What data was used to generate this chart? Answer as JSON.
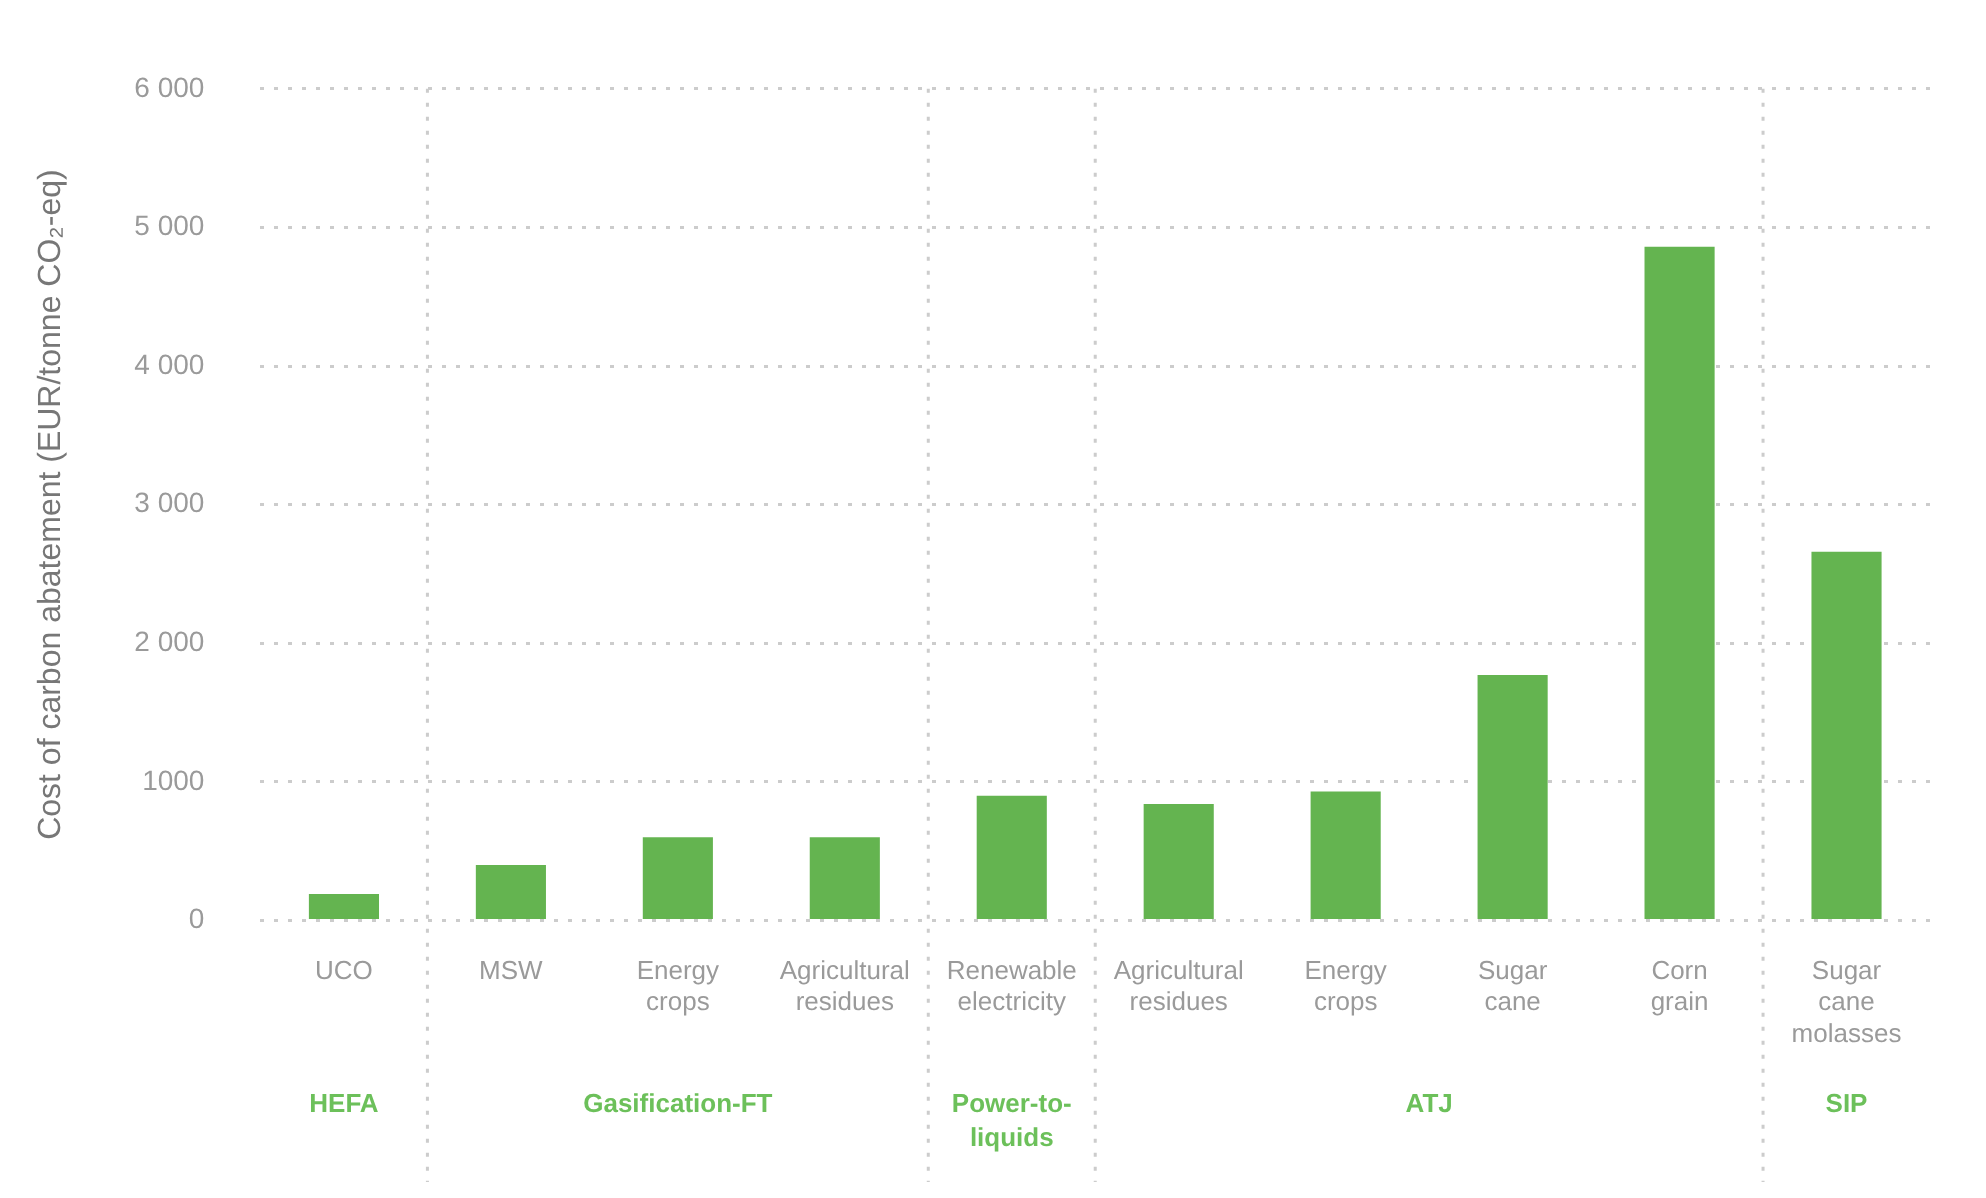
{
  "chart_data": {
    "type": "bar",
    "ylabel": "Cost of carbon abatement (EUR/tonne CO₂-eq)",
    "categories": [
      "UCO",
      "MSW",
      "Energy crops",
      "Agricultural residues",
      "Renewable electricity",
      "Agricultural residues",
      "Energy crops",
      "Sugar cane",
      "Corn grain",
      "Sugar cane molasses"
    ],
    "values": [
      190,
      400,
      600,
      600,
      900,
      840,
      930,
      1770,
      4860,
      2660
    ],
    "color": "#64b450",
    "ylim": [
      0,
      6000
    ],
    "yticks": [
      0,
      {
        "value": 1000,
        "label": "1000"
      },
      {
        "value": 2000,
        "label": "2 000"
      },
      {
        "value": 3000,
        "label": "3 000"
      },
      {
        "value": 4000,
        "label": "4 000"
      },
      {
        "value": 5000,
        "label": "5 000"
      },
      {
        "value": 6000,
        "label": "6 000"
      }
    ],
    "grid": "y",
    "annotations": [
      "HEFA",
      "Gasification-FT",
      "Power-to-liquids",
      "ATJ",
      "SIP"
    ]
  }
}
